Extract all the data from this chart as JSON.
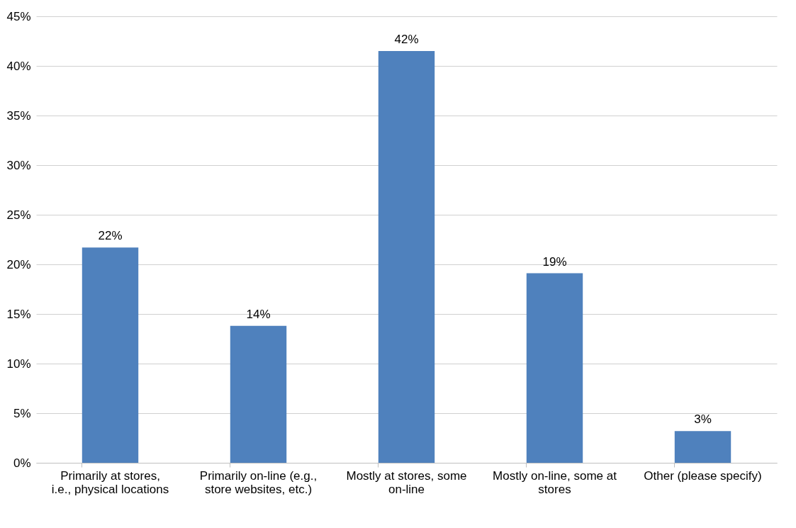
{
  "chart_data": {
    "type": "bar",
    "categories": [
      "Primarily at stores, i.e., physical locations",
      "Primarily on-line (e.g., store websites, etc.)",
      "Mostly at stores, some on-line",
      "Mostly on-line, some at stores",
      "Other (please specify)"
    ],
    "values": [
      21.7,
      13.8,
      41.5,
      19.1,
      3.2
    ],
    "value_labels": [
      "22%",
      "14%",
      "42%",
      "19%",
      "3%"
    ],
    "color": "#4f81bd",
    "ylim": [
      0,
      45
    ],
    "yticks": [
      {
        "value": 0,
        "label": "0%"
      },
      {
        "value": 5,
        "label": "5%"
      },
      {
        "value": 10,
        "label": "10%"
      },
      {
        "value": 15,
        "label": "15%"
      },
      {
        "value": 20,
        "label": "20%"
      },
      {
        "value": 25,
        "label": "25%"
      },
      {
        "value": 30,
        "label": "30%"
      },
      {
        "value": 35,
        "label": "35%"
      },
      {
        "value": 40,
        "label": "40%"
      },
      {
        "value": 45,
        "label": "45%"
      }
    ],
    "grid": "y"
  }
}
